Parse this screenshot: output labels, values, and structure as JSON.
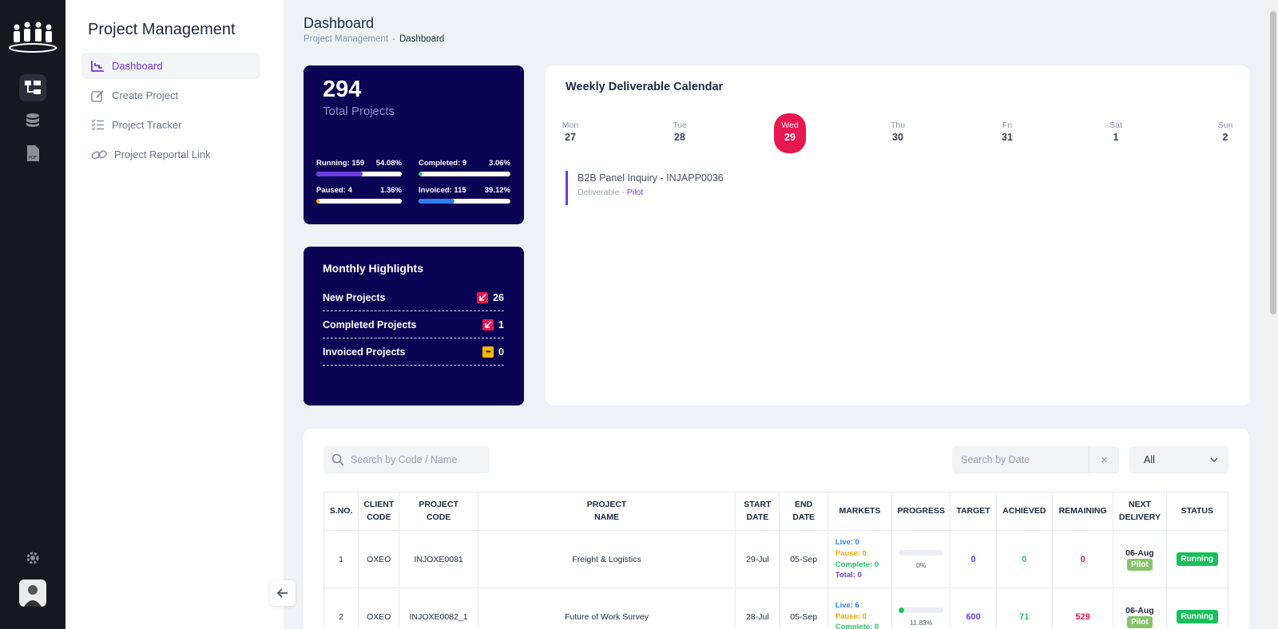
{
  "sidebar": {
    "title": "Project Management",
    "items": [
      {
        "label": "Dashboard",
        "icon": "chart-icon",
        "active": true
      },
      {
        "label": "Create Project",
        "icon": "edit-icon"
      },
      {
        "label": "Project Tracker",
        "icon": "checklist-icon"
      },
      {
        "label": "Project Reportal Link",
        "icon": "link-icon"
      }
    ]
  },
  "rail": {
    "icons": [
      "logo-icon",
      "hierarchy-icon",
      "database-icon",
      "pdf-icon",
      "settings-icon",
      "avatar"
    ]
  },
  "header": {
    "title": "Dashboard",
    "breadcrumb": {
      "parent": "Project Management",
      "separator": "-",
      "current": "Dashboard"
    }
  },
  "totals": {
    "count": "294",
    "label": "Total Projects",
    "stats": [
      {
        "label": "Running: 159",
        "pct": "54.08%",
        "fraction": 0.5408,
        "color": "#6e3be0"
      },
      {
        "label": "Completed: 9",
        "pct": "3.06%",
        "fraction": 0.0306,
        "color": "#22c55e"
      },
      {
        "label": "Paused: 4",
        "pct": "1.36%",
        "fraction": 0.0136,
        "color": "#f5a300"
      },
      {
        "label": "Invoiced: 115",
        "pct": "39.12%",
        "fraction": 0.3912,
        "color": "#2f7ff0"
      }
    ]
  },
  "highlights": {
    "title": "Monthly Highlights",
    "rows": [
      {
        "label": "New Projects",
        "value": "26",
        "badge_color": "#e8174f"
      },
      {
        "label": "Completed Projects",
        "value": "1",
        "badge_color": "#e8174f"
      },
      {
        "label": "Invoiced Projects",
        "value": "0",
        "badge_color": "#f5b800"
      }
    ]
  },
  "calendar": {
    "title": "Weekly Deliverable Calendar",
    "days": [
      {
        "name": "Mon",
        "date": "27"
      },
      {
        "name": "Tue",
        "date": "28"
      },
      {
        "name": "Wed",
        "date": "29",
        "today": true
      },
      {
        "name": "Thu",
        "date": "30"
      },
      {
        "name": "Fri",
        "date": "31"
      },
      {
        "name": "Sat",
        "date": "1"
      },
      {
        "name": "Sun",
        "date": "2"
      }
    ],
    "deliverable": {
      "title": "B2B Panel Inquiry - INJAPP0036",
      "prefix": "Deliverable - ",
      "type": "Pilot"
    }
  },
  "filters": {
    "search_placeholder": "Search by Code / Name",
    "date_placeholder": "Search by Date",
    "clear": "×",
    "select_value": "All"
  },
  "table": {
    "headers": [
      "S.NO.",
      "CLIENT\nCODE",
      "PROJECT\nCODE",
      "PROJECT\nNAME",
      "START\nDATE",
      "END\nDATE",
      "MARKETS",
      "PROGRESS",
      "TARGET",
      "ACHIEVED",
      "REMAINING",
      "NEXT\nDELIVERY",
      "STATUS"
    ],
    "rows": [
      {
        "sno": "1",
        "client": "OXEO",
        "code": "INJOXE0081",
        "name": "Freight & Logistics",
        "start": "29-Jul",
        "end": "05-Sep",
        "markets": {
          "live": "Live: 0",
          "pause": "Pause: 0",
          "complete": "Complete: 0",
          "total": "Total: 0"
        },
        "progress": "0%",
        "progress_fraction": 0,
        "target": "0",
        "achieved": "0",
        "remaining": "0",
        "next_date": "06-Aug",
        "next_type": "Pilot",
        "status": "Running"
      },
      {
        "sno": "2",
        "client": "OXEO",
        "code": "INJOXE0082_1",
        "name": "Future of Work Survey",
        "start": "28-Jul",
        "end": "05-Sep",
        "markets": {
          "live": "Live: 6",
          "pause": "Pause: 0",
          "complete": "Complete: 0",
          "total": ""
        },
        "progress": "11.83%",
        "progress_fraction": 0.1183,
        "target": "600",
        "achieved": "71",
        "remaining": "529",
        "next_date": "06-Aug",
        "next_type": "Pilot",
        "status": "Running"
      }
    ]
  }
}
